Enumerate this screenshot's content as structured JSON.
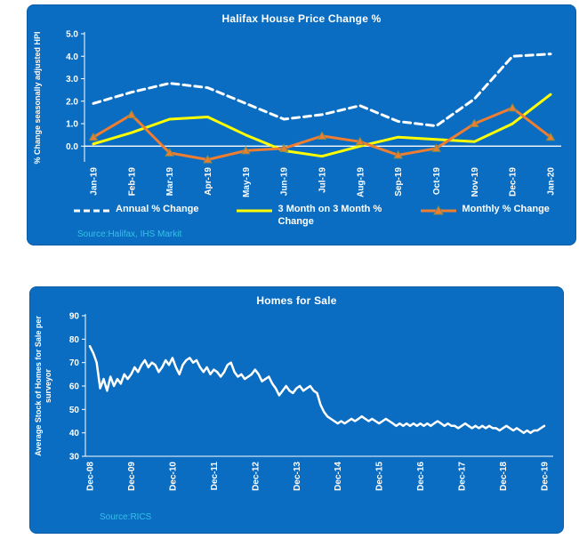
{
  "colors": {
    "panel_background": "#0b6dc1",
    "source_text": "#35c1e8",
    "annual_series": "#ffffff",
    "three_month_series": "#ffff00",
    "monthly_series": "#ed7d31",
    "monthly_marker_outline": "#7f8c52"
  },
  "chart_data": [
    {
      "type": "line",
      "title": "Halifax House Price Change %",
      "ylabel": "% Change seasonally adjusted HPI",
      "source_label": "Source:Halifax, IHS Markit",
      "categories": [
        "Jan-19",
        "Feb-19",
        "Mar-19",
        "Apr-19",
        "May-19",
        "Jun-19",
        "Jul-19",
        "Aug-19",
        "Sep-19",
        "Oct-19",
        "Nov-19",
        "Dec-19",
        "Jan-20"
      ],
      "yticks": [
        0,
        1,
        2,
        3,
        4,
        5
      ],
      "ytick_labels": [
        "0.0",
        "1.0",
        "2.0",
        "3.0",
        "4.0",
        "5.0"
      ],
      "ylim": [
        -0.7,
        5.0
      ],
      "grid": false,
      "zero_line": true,
      "x_axis_line": false,
      "legend_position": "bottom",
      "series": [
        {
          "name": "Annual % Change",
          "color": "#ffffff",
          "width": 3,
          "dash": "8 5",
          "values": [
            1.9,
            2.4,
            2.8,
            2.6,
            1.9,
            1.2,
            1.4,
            1.8,
            1.1,
            0.9,
            2.1,
            4.0,
            4.1
          ]
        },
        {
          "name": "3 Month on 3 Month % Change",
          "color": "#ffff00",
          "width": 3,
          "values": [
            0.1,
            0.6,
            1.2,
            1.3,
            0.5,
            -0.2,
            -0.45,
            0.0,
            0.4,
            0.3,
            0.2,
            1.0,
            2.3
          ]
        },
        {
          "name": "Monthly % Change",
          "color": "#ed7d31",
          "width": 3,
          "marker": "triangle",
          "marker_stroke": "#7f8c52",
          "values": [
            0.4,
            1.4,
            -0.3,
            -0.6,
            -0.2,
            -0.1,
            0.45,
            0.2,
            -0.4,
            -0.1,
            1.0,
            1.7,
            0.4
          ]
        }
      ]
    },
    {
      "type": "line",
      "title": "Homes for Sale",
      "ylabel": "Average Stock of Homes for Sale per surveyor",
      "ylabel_lines": [
        "Average Stock of Homes for Sale per",
        "surveyor"
      ],
      "source_label": "Source:RICS",
      "x_labels": [
        "Dec-08",
        "Dec-09",
        "Dec-10",
        "Dec-11",
        "Dec-12",
        "Dec-13",
        "Dec-14",
        "Dec-15",
        "Dec-16",
        "Dec-17",
        "Dec-18",
        "Dec-19"
      ],
      "x_label_every": 12,
      "yticks": [
        30,
        40,
        50,
        60,
        70,
        80,
        90
      ],
      "ytick_labels": [
        "30",
        "40",
        "50",
        "60",
        "70",
        "80",
        "90"
      ],
      "ylim": [
        30,
        90
      ],
      "grid": false,
      "zero_line": false,
      "x_axis_line": true,
      "legend_position": "none",
      "series": [
        {
          "name": "Homes for Sale",
          "color": "#ffffff",
          "width": 2.5,
          "values": [
            77,
            74,
            70,
            59,
            63,
            58,
            64,
            60,
            63,
            61,
            65,
            63,
            65,
            68,
            66,
            69,
            71,
            68,
            70,
            69,
            66,
            68,
            71,
            69,
            72,
            68,
            65,
            69,
            71,
            72,
            70,
            71,
            68,
            66,
            68,
            65,
            67,
            66,
            64,
            66,
            69,
            70,
            66,
            64,
            65,
            63,
            64,
            65,
            67,
            65,
            62,
            63,
            64,
            61,
            59,
            56,
            58,
            60,
            58,
            57,
            59,
            60,
            58,
            59,
            60,
            58,
            57,
            52,
            49,
            47,
            46,
            45,
            44,
            45,
            44,
            45,
            46,
            45,
            46,
            47,
            46,
            45,
            46,
            45,
            44,
            45,
            46,
            45,
            44,
            43,
            44,
            43,
            44,
            43,
            44,
            43,
            44,
            43,
            44,
            43,
            44,
            45,
            44,
            43,
            44,
            43,
            43,
            42,
            43,
            44,
            43,
            42,
            43,
            42,
            43,
            42,
            43,
            42,
            42,
            41,
            42,
            43,
            42,
            41,
            42,
            41,
            40,
            41,
            40,
            41,
            41,
            42,
            43
          ]
        }
      ]
    }
  ]
}
